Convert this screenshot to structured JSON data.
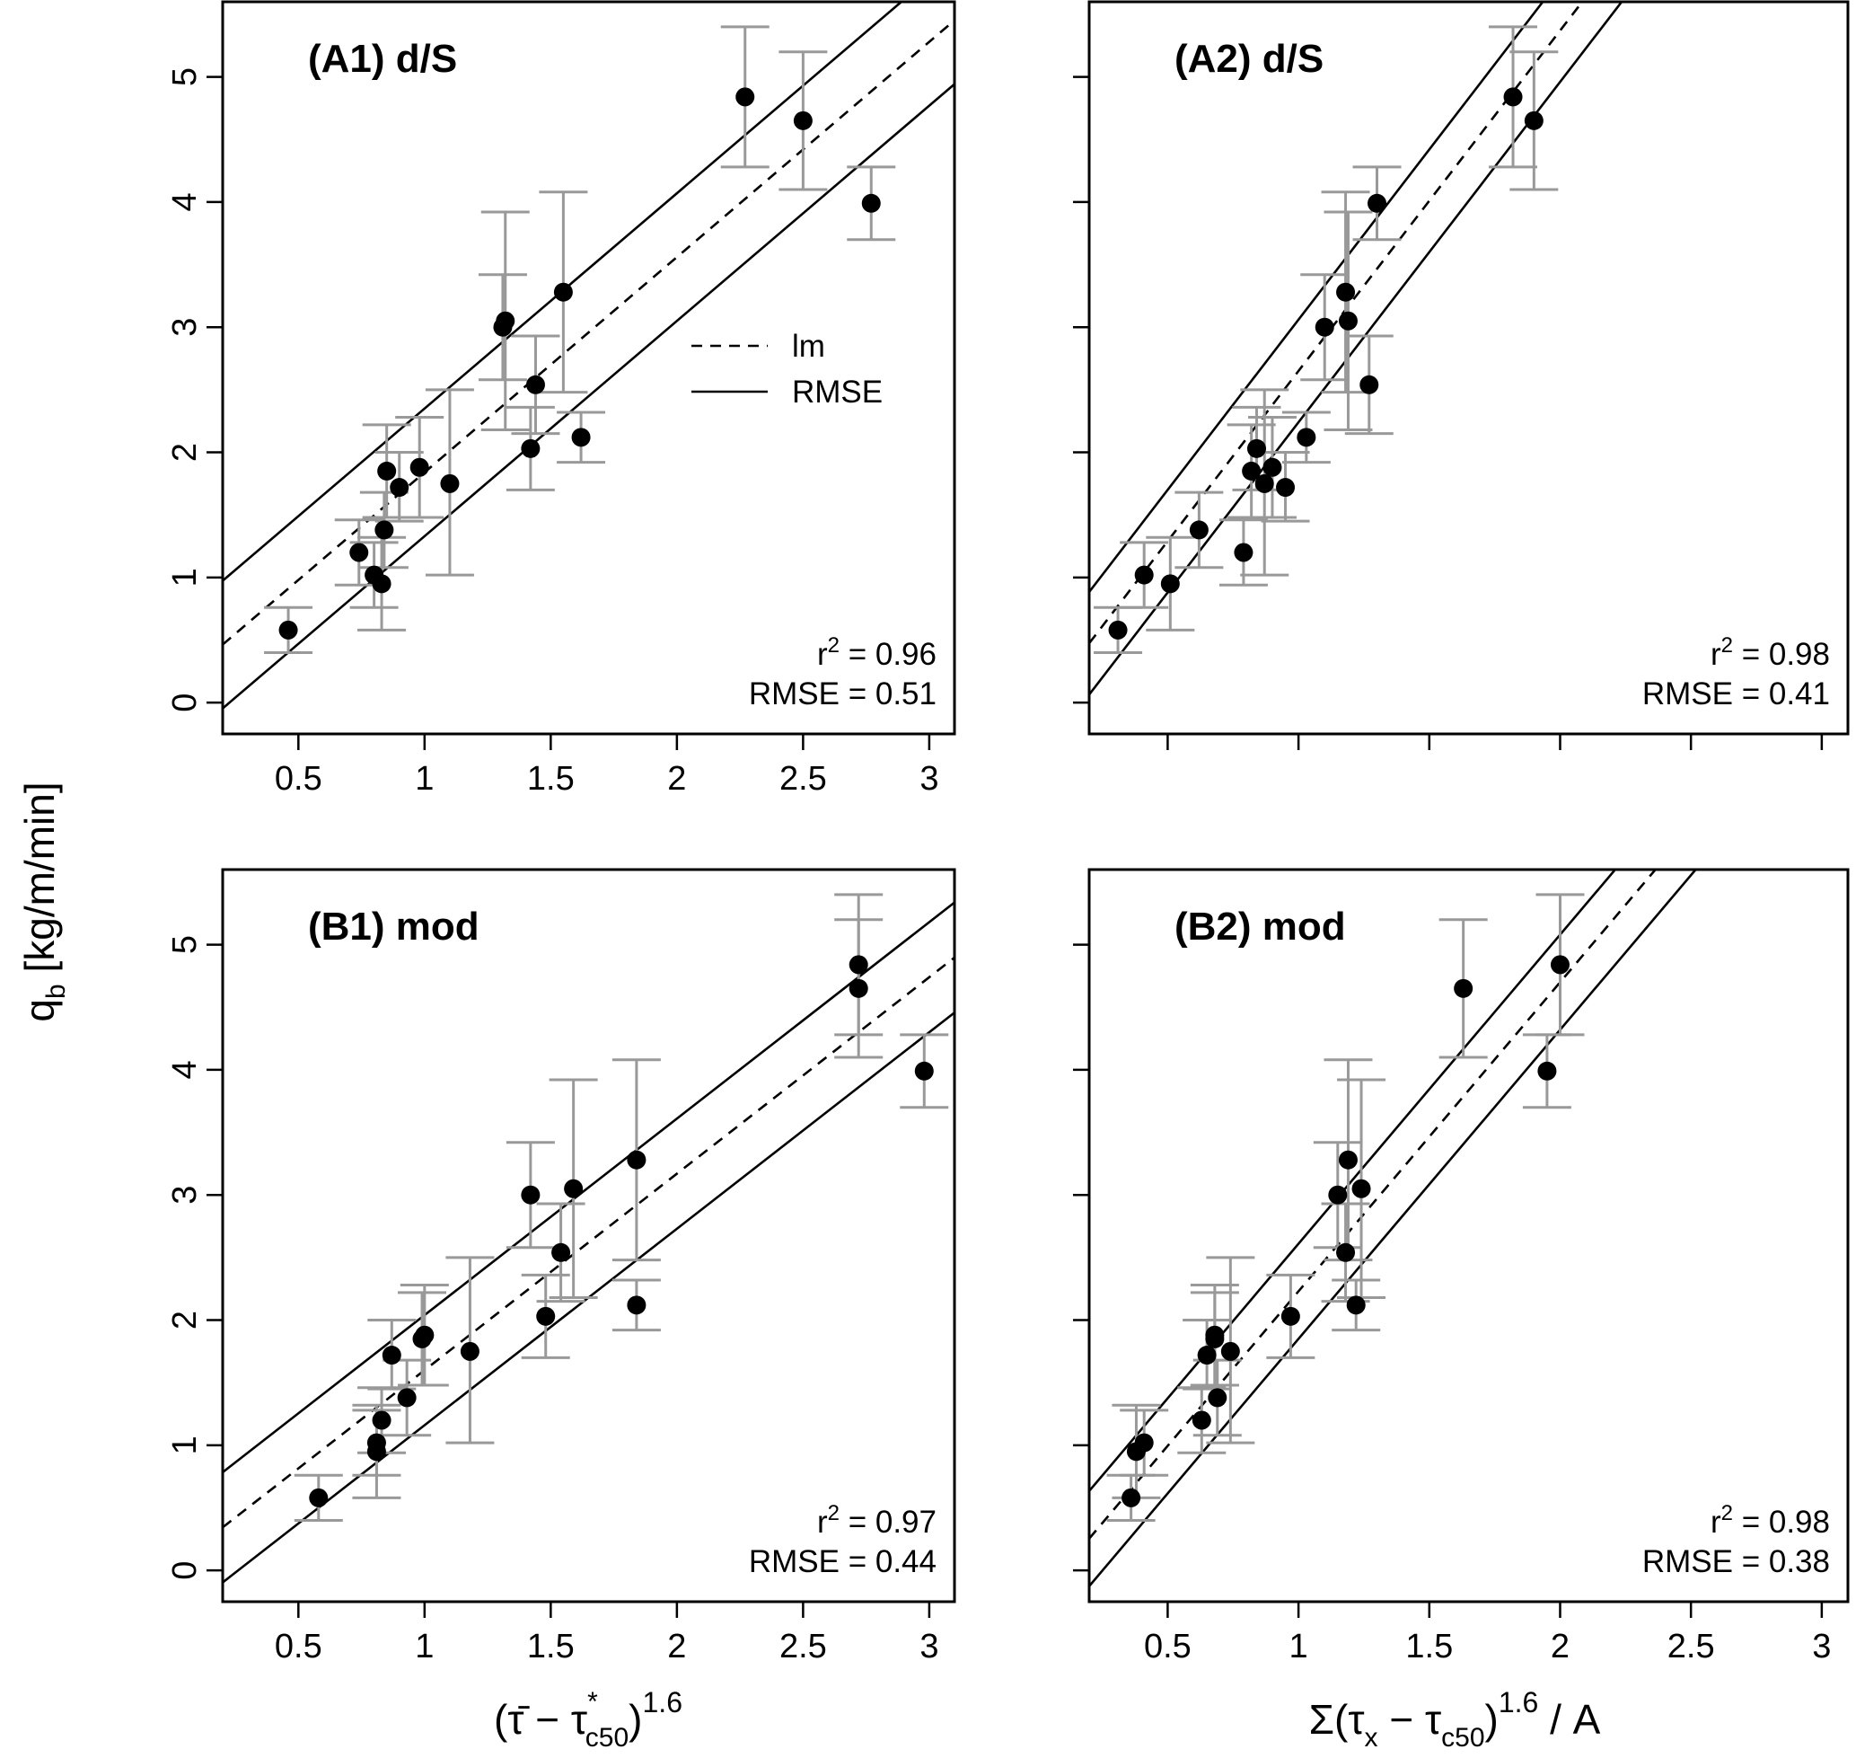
{
  "y_axis_title": "q",
  "y_axis_sub": "b",
  "y_axis_unit": " [kg/m/min]",
  "x_axis_left_title": "(τ̄ − τ",
  "x_axis_left_sup_star": "*",
  "x_axis_left_sub": "c50",
  "x_axis_left_exp": ")",
  "x_axis_left_power": "1.6",
  "x_axis_right_title": "Σ(τ",
  "x_axis_right_sub_x": "x",
  "x_axis_right_mid": " − τ",
  "x_axis_right_sub_c": "c50",
  "x_axis_right_close": ")",
  "x_axis_right_power": "1.6",
  "x_axis_right_tail": " / A",
  "legend": {
    "lm": "lm",
    "rmse": "RMSE"
  },
  "chart_data": [
    {
      "id": "A1",
      "type": "scatter",
      "title": "(A1) d/S",
      "r2_label": "r",
      "r2_value": "= 0.96",
      "rmse_text": "RMSE = 0.51",
      "xlim": [
        0.2,
        3.1
      ],
      "ylim": [
        -0.25,
        5.6
      ],
      "xticks": [
        0.5,
        1,
        1.5,
        2,
        2.5,
        3
      ],
      "yticks": [
        0,
        1,
        2,
        3,
        4,
        5
      ],
      "fit": {
        "slope": 1.72,
        "intercept": 0.12,
        "rmse": 0.51,
        "x_range": [
          0.2,
          3.1
        ]
      },
      "points": [
        {
          "x": 0.46,
          "y": 0.58,
          "lo": 0.4,
          "hi": 0.76
        },
        {
          "x": 0.74,
          "y": 1.2,
          "lo": 0.94,
          "hi": 1.46
        },
        {
          "x": 0.8,
          "y": 1.02,
          "lo": 0.76,
          "hi": 1.28
        },
        {
          "x": 0.83,
          "y": 0.95,
          "lo": 0.58,
          "hi": 1.32
        },
        {
          "x": 0.84,
          "y": 1.38,
          "lo": 1.08,
          "hi": 1.68
        },
        {
          "x": 0.85,
          "y": 1.85,
          "lo": 1.48,
          "hi": 2.22
        },
        {
          "x": 0.9,
          "y": 1.72,
          "lo": 1.45,
          "hi": 2.0
        },
        {
          "x": 0.98,
          "y": 1.88,
          "lo": 1.48,
          "hi": 2.28
        },
        {
          "x": 1.1,
          "y": 1.75,
          "lo": 1.02,
          "hi": 2.5
        },
        {
          "x": 1.31,
          "y": 3.0,
          "lo": 2.58,
          "hi": 3.42
        },
        {
          "x": 1.32,
          "y": 3.05,
          "lo": 2.18,
          "hi": 3.92
        },
        {
          "x": 1.42,
          "y": 2.03,
          "lo": 1.7,
          "hi": 2.36
        },
        {
          "x": 1.44,
          "y": 2.54,
          "lo": 2.15,
          "hi": 2.93
        },
        {
          "x": 1.55,
          "y": 3.28,
          "lo": 2.48,
          "hi": 4.08
        },
        {
          "x": 1.62,
          "y": 2.12,
          "lo": 1.92,
          "hi": 2.32
        },
        {
          "x": 2.27,
          "y": 4.84,
          "lo": 4.28,
          "hi": 5.4
        },
        {
          "x": 2.5,
          "y": 4.65,
          "lo": 4.1,
          "hi": 5.2
        },
        {
          "x": 2.77,
          "y": 3.99,
          "lo": 3.7,
          "hi": 4.28
        }
      ]
    },
    {
      "id": "A2",
      "type": "scatter",
      "title": "(A2) d/S",
      "r2_label": "r",
      "r2_value": "= 0.98",
      "rmse_text": "RMSE = 0.41",
      "xlim": [
        0.2,
        3.1
      ],
      "ylim": [
        -0.25,
        5.6
      ],
      "xticks": [
        0.5,
        1,
        1.5,
        2,
        2.5,
        3
      ],
      "yticks": [
        0,
        1,
        2,
        3,
        4,
        5
      ],
      "fit": {
        "slope": 2.72,
        "intercept": -0.07,
        "rmse": 0.41,
        "x_range": [
          0.2,
          3.1
        ]
      },
      "points": [
        {
          "x": 0.31,
          "y": 0.58,
          "lo": 0.4,
          "hi": 0.76
        },
        {
          "x": 0.41,
          "y": 1.02,
          "lo": 0.76,
          "hi": 1.28
        },
        {
          "x": 0.51,
          "y": 0.95,
          "lo": 0.58,
          "hi": 1.32
        },
        {
          "x": 0.62,
          "y": 1.38,
          "lo": 1.08,
          "hi": 1.68
        },
        {
          "x": 0.79,
          "y": 1.2,
          "lo": 0.94,
          "hi": 1.46
        },
        {
          "x": 0.82,
          "y": 1.85,
          "lo": 1.48,
          "hi": 2.22
        },
        {
          "x": 0.84,
          "y": 2.03,
          "lo": 1.7,
          "hi": 2.36
        },
        {
          "x": 0.87,
          "y": 1.75,
          "lo": 1.02,
          "hi": 2.5
        },
        {
          "x": 0.9,
          "y": 1.88,
          "lo": 1.48,
          "hi": 2.28
        },
        {
          "x": 0.95,
          "y": 1.72,
          "lo": 1.45,
          "hi": 2.0
        },
        {
          "x": 1.03,
          "y": 2.12,
          "lo": 1.92,
          "hi": 2.32
        },
        {
          "x": 1.1,
          "y": 3.0,
          "lo": 2.58,
          "hi": 3.42
        },
        {
          "x": 1.18,
          "y": 3.28,
          "lo": 2.48,
          "hi": 4.08
        },
        {
          "x": 1.19,
          "y": 3.05,
          "lo": 2.18,
          "hi": 3.92
        },
        {
          "x": 1.27,
          "y": 2.54,
          "lo": 2.15,
          "hi": 2.93
        },
        {
          "x": 1.3,
          "y": 3.99,
          "lo": 3.7,
          "hi": 4.28
        },
        {
          "x": 1.82,
          "y": 4.84,
          "lo": 4.28,
          "hi": 5.4
        },
        {
          "x": 1.9,
          "y": 4.65,
          "lo": 4.1,
          "hi": 5.2
        }
      ]
    },
    {
      "id": "B1",
      "type": "scatter",
      "title": "(B1) mod",
      "r2_label": "r",
      "r2_value": "= 0.97",
      "rmse_text": "RMSE = 0.44",
      "xlim": [
        0.2,
        3.1
      ],
      "ylim": [
        -0.25,
        5.6
      ],
      "xticks": [
        0.5,
        1,
        1.5,
        2,
        2.5,
        3
      ],
      "yticks": [
        0,
        1,
        2,
        3,
        4,
        5
      ],
      "fit": {
        "slope": 1.57,
        "intercept": 0.03,
        "rmse": 0.44,
        "x_range": [
          0.2,
          3.1
        ]
      },
      "points": [
        {
          "x": 0.58,
          "y": 0.58,
          "lo": 0.4,
          "hi": 0.76
        },
        {
          "x": 0.81,
          "y": 0.95,
          "lo": 0.58,
          "hi": 1.32
        },
        {
          "x": 0.81,
          "y": 1.02,
          "lo": 0.76,
          "hi": 1.28
        },
        {
          "x": 0.83,
          "y": 1.2,
          "lo": 0.94,
          "hi": 1.46
        },
        {
          "x": 0.87,
          "y": 1.72,
          "lo": 1.45,
          "hi": 2.0
        },
        {
          "x": 0.93,
          "y": 1.38,
          "lo": 1.08,
          "hi": 1.68
        },
        {
          "x": 0.99,
          "y": 1.85,
          "lo": 1.48,
          "hi": 2.22
        },
        {
          "x": 1.0,
          "y": 1.88,
          "lo": 1.48,
          "hi": 2.28
        },
        {
          "x": 1.18,
          "y": 1.75,
          "lo": 1.02,
          "hi": 2.5
        },
        {
          "x": 1.42,
          "y": 3.0,
          "lo": 2.58,
          "hi": 3.42
        },
        {
          "x": 1.48,
          "y": 2.03,
          "lo": 1.7,
          "hi": 2.36
        },
        {
          "x": 1.54,
          "y": 2.54,
          "lo": 2.15,
          "hi": 2.93
        },
        {
          "x": 1.59,
          "y": 3.05,
          "lo": 2.18,
          "hi": 3.92
        },
        {
          "x": 1.84,
          "y": 3.28,
          "lo": 2.48,
          "hi": 4.08
        },
        {
          "x": 1.84,
          "y": 2.12,
          "lo": 1.92,
          "hi": 2.32
        },
        {
          "x": 2.72,
          "y": 4.84,
          "lo": 4.28,
          "hi": 5.4
        },
        {
          "x": 2.72,
          "y": 4.65,
          "lo": 4.1,
          "hi": 5.2
        },
        {
          "x": 2.98,
          "y": 3.99,
          "lo": 3.7,
          "hi": 4.28
        }
      ]
    },
    {
      "id": "B2",
      "type": "scatter",
      "title": "(B2) mod",
      "r2_label": "r",
      "r2_value": "= 0.98",
      "rmse_text": "RMSE = 0.38",
      "xlim": [
        0.2,
        3.1
      ],
      "ylim": [
        -0.25,
        5.6
      ],
      "xticks": [
        0.5,
        1,
        1.5,
        2,
        2.5,
        3
      ],
      "yticks": [
        0,
        1,
        2,
        3,
        4,
        5
      ],
      "fit": {
        "slope": 2.47,
        "intercept": -0.24,
        "rmse": 0.38,
        "x_range": [
          0.2,
          3.1
        ]
      },
      "points": [
        {
          "x": 0.36,
          "y": 0.58,
          "lo": 0.4,
          "hi": 0.76
        },
        {
          "x": 0.38,
          "y": 0.95,
          "lo": 0.58,
          "hi": 1.32
        },
        {
          "x": 0.41,
          "y": 1.02,
          "lo": 0.76,
          "hi": 1.28
        },
        {
          "x": 0.63,
          "y": 1.2,
          "lo": 0.94,
          "hi": 1.46
        },
        {
          "x": 0.65,
          "y": 1.72,
          "lo": 1.45,
          "hi": 2.0
        },
        {
          "x": 0.68,
          "y": 1.85,
          "lo": 1.48,
          "hi": 2.22
        },
        {
          "x": 0.68,
          "y": 1.88,
          "lo": 1.48,
          "hi": 2.28
        },
        {
          "x": 0.69,
          "y": 1.38,
          "lo": 1.08,
          "hi": 1.68
        },
        {
          "x": 0.74,
          "y": 1.75,
          "lo": 1.02,
          "hi": 2.5
        },
        {
          "x": 0.97,
          "y": 2.03,
          "lo": 1.7,
          "hi": 2.36
        },
        {
          "x": 1.15,
          "y": 3.0,
          "lo": 2.58,
          "hi": 3.42
        },
        {
          "x": 1.18,
          "y": 2.54,
          "lo": 2.15,
          "hi": 2.93
        },
        {
          "x": 1.19,
          "y": 3.28,
          "lo": 2.48,
          "hi": 4.08
        },
        {
          "x": 1.22,
          "y": 2.12,
          "lo": 1.92,
          "hi": 2.32
        },
        {
          "x": 1.24,
          "y": 3.05,
          "lo": 2.18,
          "hi": 3.92
        },
        {
          "x": 1.63,
          "y": 4.65,
          "lo": 4.1,
          "hi": 5.2
        },
        {
          "x": 1.95,
          "y": 3.99,
          "lo": 3.7,
          "hi": 4.28
        },
        {
          "x": 2.0,
          "y": 4.84,
          "lo": 4.28,
          "hi": 5.4
        }
      ]
    }
  ]
}
